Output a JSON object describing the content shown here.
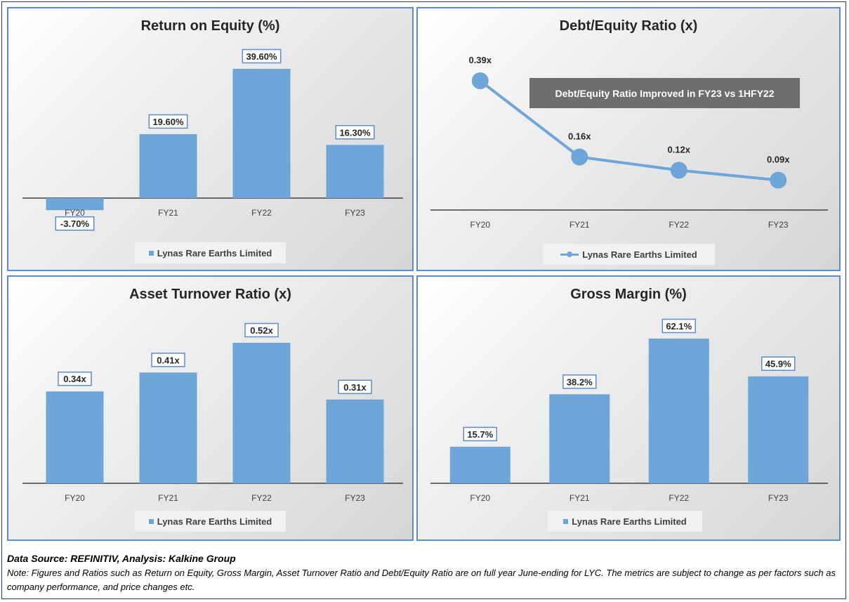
{
  "chart_data": [
    {
      "id": "roe",
      "type": "bar",
      "title": "Return on Equity (%)",
      "categories": [
        "FY20",
        "FY21",
        "FY22",
        "FY23"
      ],
      "values": [
        -3.7,
        19.6,
        39.6,
        16.3
      ],
      "value_labels": [
        "-3.70%",
        "19.60%",
        "39.60%",
        "16.30%"
      ],
      "ylim": [
        -3.7,
        39.6
      ],
      "series": [
        {
          "name": "Lynas Rare Earths Limited",
          "values": [
            -3.7,
            19.6,
            39.6,
            16.3
          ]
        }
      ],
      "legend": "bottom",
      "legend_label": "Lynas Rare Earths Limited",
      "grid": false
    },
    {
      "id": "de",
      "type": "line",
      "title": "Debt/Equity Ratio (x)",
      "categories": [
        "FY20",
        "FY21",
        "FY22",
        "FY23"
      ],
      "values": [
        0.39,
        0.16,
        0.12,
        0.09
      ],
      "value_labels": [
        "0.39x",
        "0.16x",
        "0.12x",
        "0.09x"
      ],
      "ylim": [
        0,
        0.39
      ],
      "series": [
        {
          "name": "Lynas Rare Earths Limited",
          "values": [
            0.39,
            0.16,
            0.12,
            0.09
          ]
        }
      ],
      "annotation": "Debt/Equity Ratio Improved in FY23 vs 1HFY22",
      "legend": "bottom",
      "legend_label": "Lynas Rare Earths Limited",
      "grid": false
    },
    {
      "id": "atr",
      "type": "bar",
      "title": "Asset Turnover Ratio (x)",
      "categories": [
        "FY20",
        "FY21",
        "FY22",
        "FY23"
      ],
      "values": [
        0.34,
        0.41,
        0.52,
        0.31
      ],
      "value_labels": [
        "0.34x",
        "0.41x",
        "0.52x",
        "0.31x"
      ],
      "ylim": [
        0,
        0.52
      ],
      "series": [
        {
          "name": "Lynas Rare Earths Limited",
          "values": [
            0.34,
            0.41,
            0.52,
            0.31
          ]
        }
      ],
      "legend": "bottom",
      "legend_label": "Lynas Rare Earths Limited",
      "grid": false
    },
    {
      "id": "gm",
      "type": "bar",
      "title": "Gross Margin (%)",
      "categories": [
        "FY20",
        "FY21",
        "FY22",
        "FY23"
      ],
      "values": [
        15.7,
        38.2,
        62.1,
        45.9
      ],
      "value_labels": [
        "15.7%",
        "38.2%",
        "62.1%",
        "45.9%"
      ],
      "ylim": [
        0,
        62.1
      ],
      "series": [
        {
          "name": "Lynas Rare Earths Limited",
          "values": [
            15.7,
            38.2,
            62.1,
            45.9
          ]
        }
      ],
      "legend": "bottom",
      "legend_label": "Lynas Rare Earths Limited",
      "grid": false
    }
  ],
  "footer": {
    "source": "Data Source: REFINITIV, Analysis: Kalkine Group",
    "note": "Note: Figures and Ratios such as Return on Equity, Gross Margin, Asset Turnover Ratio and Debt/Equity Ratio are on full year June-ending for LYC. The metrics are subject to change as per factors such as company performance, and price changes etc."
  },
  "colors": {
    "bar": "#6fa6da",
    "panel_border": "#5b8ec9",
    "callout_bg": "#6e6e6e",
    "axis": "#404040"
  }
}
